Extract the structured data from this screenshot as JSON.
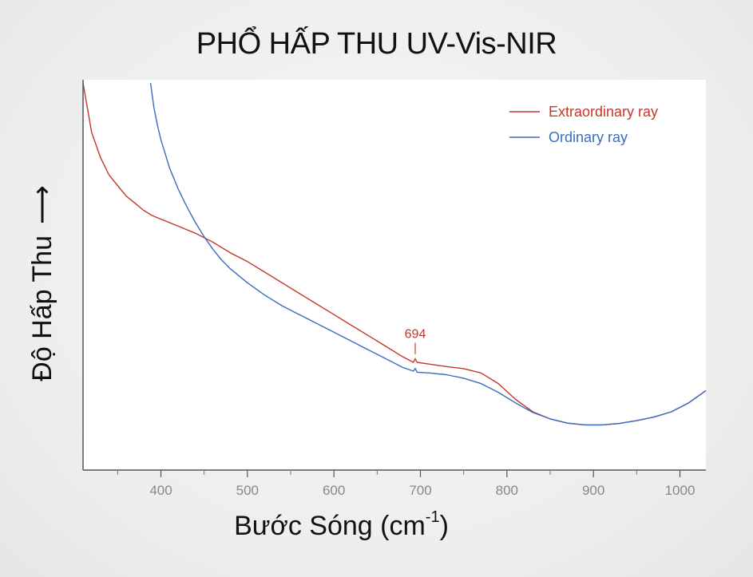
{
  "title": "PHỔ HẤP THU UV-Vis-NIR",
  "chart_data": {
    "type": "line",
    "xlabel_main": "Bước Sóng (cm",
    "xlabel_sup": "-1",
    "xlabel_close": ")",
    "ylabel": "Độ Hấp Thu",
    "ylabel_arrow": "⟶",
    "xlim": [
      310,
      1030
    ],
    "ylim": [
      0,
      100
    ],
    "x_ticks": [
      400,
      500,
      600,
      700,
      800,
      900,
      1000
    ],
    "x_tick_labels": [
      "400",
      "500",
      "600",
      "700",
      "800",
      "900",
      "1000"
    ],
    "grid": false,
    "legend_position": "top-right",
    "series": [
      {
        "name": "Extraordinary ray",
        "color": "#c0392b",
        "x": [
          310,
          320,
          330,
          340,
          350,
          360,
          370,
          380,
          390,
          400,
          420,
          440,
          460,
          480,
          500,
          520,
          540,
          560,
          580,
          600,
          620,
          640,
          660,
          680,
          692,
          694,
          696,
          710,
          730,
          750,
          770,
          790,
          810,
          830,
          850,
          870,
          890,
          910,
          930,
          950,
          970,
          990,
          1010,
          1030
        ],
        "y": [
          100,
          86,
          79,
          74,
          71,
          68,
          66,
          64,
          62.5,
          61.5,
          59.5,
          57.5,
          55,
          52,
          49.5,
          46.5,
          43.5,
          40.5,
          37.5,
          34.5,
          31.5,
          28.5,
          25.5,
          22.5,
          21,
          22,
          21,
          20.5,
          19.8,
          19.2,
          18,
          15,
          10.5,
          7,
          5,
          3.8,
          3.3,
          3.3,
          3.7,
          4.5,
          5.5,
          7,
          9.5,
          13
        ]
      },
      {
        "name": "Ordinary ray",
        "color": "#3a6cc0",
        "x": [
          388,
          392,
          396,
          400,
          410,
          420,
          430,
          440,
          450,
          460,
          470,
          480,
          500,
          520,
          540,
          560,
          580,
          600,
          620,
          640,
          660,
          680,
          692,
          694,
          696,
          710,
          730,
          750,
          770,
          790,
          810,
          830,
          850,
          870,
          890,
          910,
          930,
          950,
          970,
          990,
          1010,
          1030
        ],
        "y": [
          100,
          93,
          88,
          84,
          76,
          70,
          65,
          60.5,
          56.5,
          53,
          50,
          47.5,
          43.5,
          40,
          37,
          34.5,
          32,
          29.5,
          27,
          24.5,
          22,
          19.5,
          18.5,
          19.3,
          18.2,
          18,
          17.5,
          16.5,
          15,
          12.5,
          9.5,
          6.8,
          5,
          3.8,
          3.3,
          3.3,
          3.7,
          4.5,
          5.5,
          7,
          9.5,
          13
        ]
      }
    ],
    "annotations": [
      {
        "text": "694",
        "x": 694
      }
    ]
  }
}
